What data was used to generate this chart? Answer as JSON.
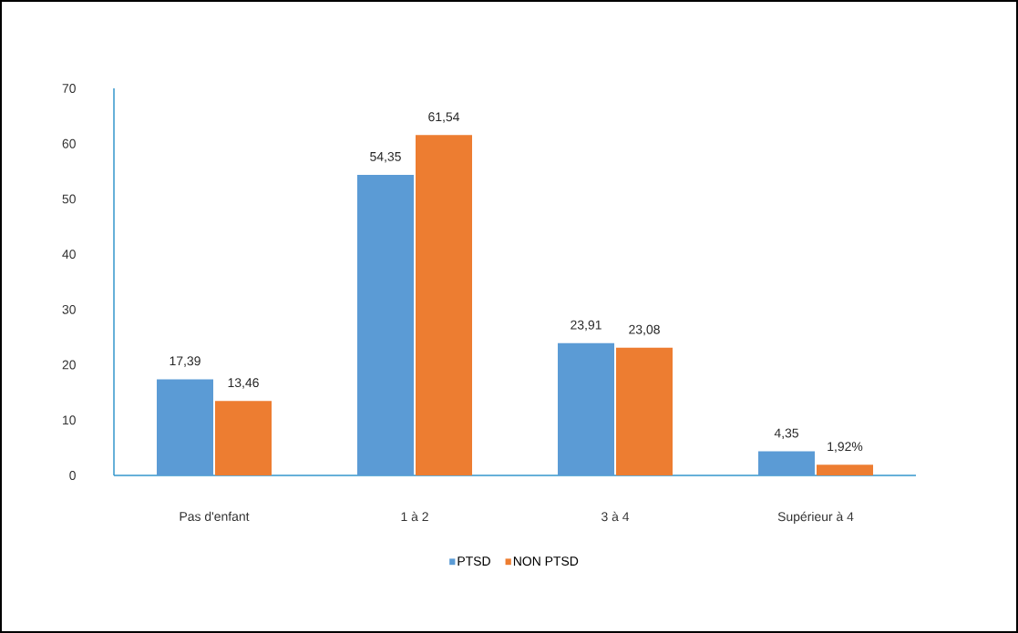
{
  "chart_data": {
    "type": "bar",
    "categories": [
      "Pas d'enfant",
      "1 à 2",
      "3 à 4",
      "Supérieur à 4"
    ],
    "series": [
      {
        "name": "PTSD",
        "color": "#5b9bd5",
        "values": [
          17.39,
          54.35,
          23.91,
          4.35
        ],
        "value_labels": [
          "17,39",
          "54,35",
          "23,91",
          "4,35"
        ]
      },
      {
        "name": "NON PTSD",
        "color": "#ed7d31",
        "values": [
          13.46,
          61.54,
          23.08,
          1.92
        ],
        "value_labels": [
          "13,46",
          "61,54",
          "23,08",
          "1,92%"
        ]
      }
    ],
    "ylim": [
      0,
      70
    ],
    "yticks": [
      0,
      10,
      20,
      30,
      40,
      50,
      60,
      70
    ],
    "legend": "bottom"
  }
}
